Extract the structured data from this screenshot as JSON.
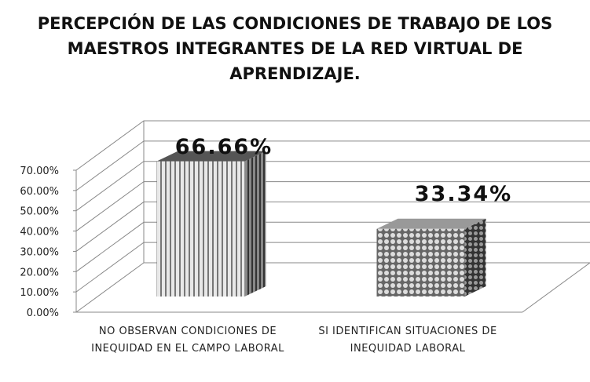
{
  "chart_data": {
    "type": "bar3d",
    "title": "PERCEPCIÓN DE LAS CONDICIONES DE TRABAJO DE LOS MAESTROS INTEGRANTES DE LA RED VIRTUAL DE APRENDIZAJE.",
    "categories": [
      "NO OBSERVAN CONDICIONES DE INEQUIDAD EN EL CAMPO LABORAL",
      "SI IDENTIFICAN SITUACIONES DE INEQUIDAD LABORAL"
    ],
    "values": [
      66.66,
      33.34
    ],
    "value_labels": [
      "66.66%",
      "33.34%"
    ],
    "ylim": [
      0,
      70
    ],
    "yticks": [
      {
        "value": 0,
        "label": "0.00%"
      },
      {
        "value": 10,
        "label": "10.00%"
      },
      {
        "value": 20,
        "label": "20.00%"
      },
      {
        "value": 30,
        "label": "30.00%"
      },
      {
        "value": 40,
        "label": "40.00%"
      },
      {
        "value": 50,
        "label": "50.00%"
      },
      {
        "value": 60,
        "label": "60.00%"
      },
      {
        "value": 70,
        "label": "70.00%"
      }
    ],
    "grid": true
  }
}
